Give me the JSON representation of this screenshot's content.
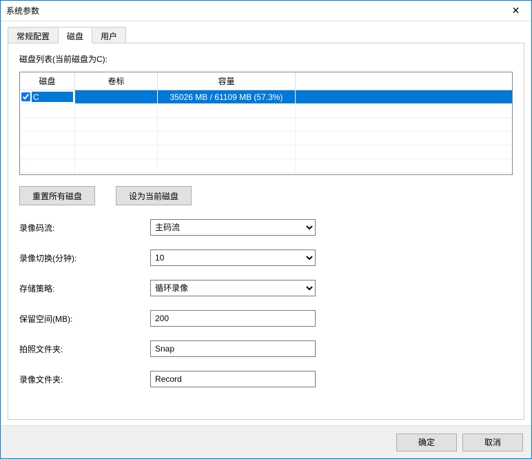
{
  "window": {
    "title": "系统参数",
    "close_icon": "✕"
  },
  "tabs": {
    "general": "常规配置",
    "disk": "磁盘",
    "user": "用户",
    "active": "disk"
  },
  "disk_panel": {
    "list_label": "磁盘列表(当前磁盘为C):",
    "columns": {
      "disk": "磁盘",
      "label": "卷标",
      "capacity": "容量"
    },
    "rows": [
      {
        "checked": true,
        "disk": "C",
        "label": "",
        "capacity": "35026 MB /   61109 MB (57.3%)",
        "selected": true
      }
    ],
    "empty_rows": 5,
    "reset_btn": "重置所有磁盘",
    "set_current_btn": "设为当前磁盘"
  },
  "form": {
    "stream_label": "录像码流:",
    "stream_value": "主码流",
    "switch_label": "录像切换(分钟):",
    "switch_value": "10",
    "policy_label": "存储策略:",
    "policy_value": "循环录像",
    "reserve_label": "保留空间(MB):",
    "reserve_value": "200",
    "snap_label": "拍照文件夹:",
    "snap_value": "Snap",
    "record_label": "录像文件夹:",
    "record_value": "Record"
  },
  "footer": {
    "ok": "确定",
    "cancel": "取消"
  }
}
